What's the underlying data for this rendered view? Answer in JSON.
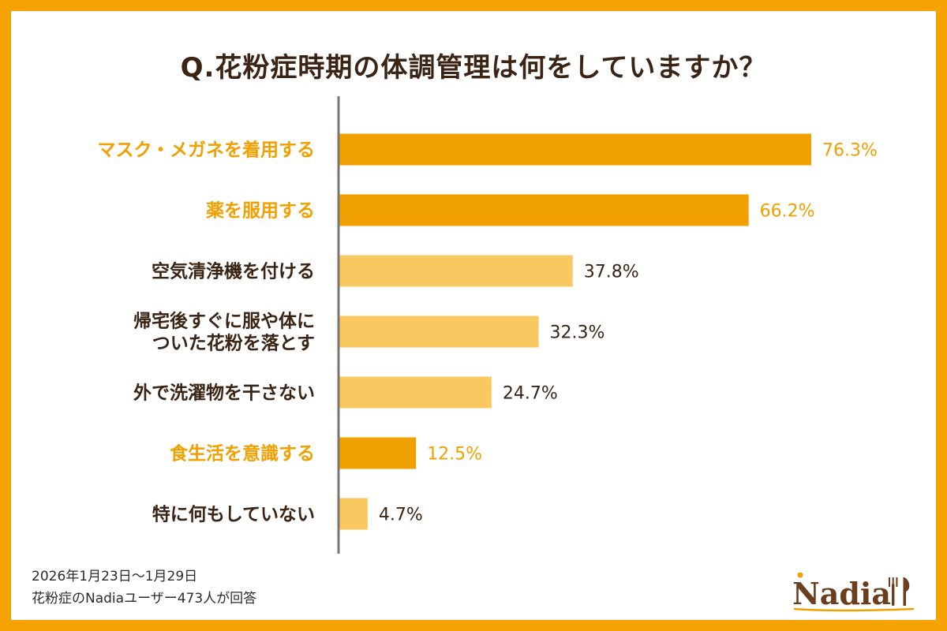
{
  "title": "Q.花粉症時期の体調管理は何をしていますか？",
  "footnote": {
    "line1": "2026年1月23日〜1月29日",
    "line2": "花粉症のNadiaユーザー473人が回答"
  },
  "logo": {
    "text": "Nadia",
    "icon": "fork-and-knife-icon"
  },
  "colors": {
    "frame": "#F5A300",
    "bar_highlight": "#F0A000",
    "bar_normal": "#FAC860",
    "text_highlight": "#F0A000",
    "text_normal": "#3B2414",
    "axis": "#777777"
  },
  "chart_data": {
    "type": "bar",
    "orientation": "horizontal",
    "title": "Q.花粉症時期の体調管理は何をしていますか？",
    "unit": "%",
    "categories": [
      [
        "マスク・メガネを着用する"
      ],
      [
        "薬を服用する"
      ],
      [
        "空気清浄機を付ける"
      ],
      [
        "帰宅後すぐに服や体に",
        "ついた花粉を落とす"
      ],
      [
        "外で洗濯物を干さない"
      ],
      [
        "食生活を意識する"
      ],
      [
        "特に何もしていない"
      ]
    ],
    "values": [
      76.3,
      66.2,
      37.8,
      32.3,
      24.7,
      12.5,
      4.7
    ],
    "value_labels": [
      "76.3%",
      "66.2%",
      "37.8%",
      "32.3%",
      "24.7%",
      "12.5%",
      "4.7%"
    ],
    "highlighted": [
      true,
      true,
      false,
      false,
      false,
      true,
      false
    ],
    "xlim": [
      0,
      100
    ],
    "grid": false,
    "legend": "none"
  }
}
